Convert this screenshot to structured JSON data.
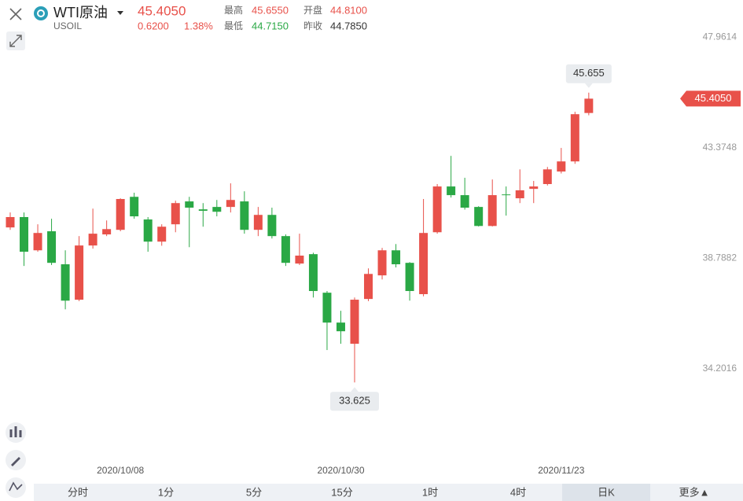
{
  "header": {
    "name": "WTI原油",
    "symbol": "USOIL",
    "price": "45.4050",
    "change": "0.6200",
    "change_pct": "1.38%",
    "high_label": "最高",
    "high": "45.6550",
    "open_label": "开盘",
    "open": "44.8100",
    "low_label": "最低",
    "low": "44.7150",
    "prev_close_label": "昨收",
    "prev_close": "44.7850"
  },
  "chart_data": {
    "type": "candlestick",
    "categories": [
      null,
      null,
      null,
      null,
      null,
      null,
      null,
      null,
      "2020/10/08",
      null,
      null,
      null,
      null,
      null,
      null,
      null,
      null,
      null,
      null,
      null,
      null,
      null,
      null,
      null,
      "2020/10/30",
      null,
      null,
      null,
      null,
      null,
      null,
      null,
      null,
      null,
      null,
      null,
      null,
      null,
      null,
      null,
      "2020/11/23",
      null,
      null
    ],
    "open": [
      40.06,
      40.49,
      39.11,
      39.9,
      38.53,
      37.06,
      39.31,
      39.77,
      39.96,
      41.33,
      40.39,
      39.47,
      40.19,
      41.14,
      40.81,
      40.91,
      40.91,
      41.14,
      39.96,
      40.58,
      39.7,
      38.56,
      38.95,
      37.35,
      36.11,
      35.23,
      37.09,
      38.07,
      39.11,
      38.59,
      37.29,
      39.86,
      41.76,
      41.4,
      40.91,
      40.12,
      41.43,
      41.27,
      41.66,
      41.86,
      42.38,
      42.8,
      44.81
    ],
    "high": [
      40.68,
      40.68,
      40.19,
      40.42,
      39.11,
      39.7,
      40.84,
      40.35,
      41.27,
      41.5,
      40.49,
      40.19,
      41.17,
      41.33,
      41.07,
      41.2,
      41.89,
      41.56,
      40.91,
      40.88,
      39.77,
      39.8,
      39.01,
      37.42,
      36.6,
      37.15,
      38.36,
      39.21,
      39.37,
      38.62,
      41.24,
      41.86,
      43.03,
      42.12,
      40.94,
      42.05,
      41.76,
      42.47,
      41.99,
      42.57,
      43.36,
      44.86,
      45.655
    ],
    "low": [
      39.96,
      38.46,
      39.05,
      38.5,
      36.66,
      37.0,
      39.18,
      39.7,
      39.9,
      40.42,
      39.05,
      39.3,
      39.86,
      39.24,
      40.09,
      40.52,
      40.68,
      39.8,
      39.7,
      39.6,
      38.46,
      38.5,
      37.15,
      34.97,
      35.23,
      33.625,
      37.0,
      37.9,
      38.4,
      37.02,
      37.2,
      39.8,
      41.3,
      40.8,
      40.1,
      40.1,
      40.55,
      41.07,
      41.07,
      41.8,
      42.3,
      42.7,
      44.715
    ],
    "close": [
      40.49,
      39.05,
      39.83,
      38.59,
      37.02,
      39.31,
      39.8,
      39.99,
      41.24,
      40.52,
      39.47,
      40.09,
      41.07,
      40.88,
      40.75,
      40.71,
      41.2,
      39.96,
      40.58,
      39.7,
      38.59,
      38.89,
      37.42,
      36.11,
      35.75,
      37.06,
      38.13,
      39.11,
      38.53,
      37.42,
      39.83,
      41.76,
      41.4,
      40.88,
      40.12,
      41.4,
      41.4,
      41.6,
      41.76,
      42.47,
      42.8,
      44.76,
      45.405
    ],
    "up_color": "#e8514a",
    "down_color": "#2aa845",
    "ylim": [
      29.52,
      49.5
    ],
    "yticks": [
      34.2016,
      38.7882,
      43.3748,
      47.9614
    ],
    "max_label": "45.655",
    "min_label": "33.625"
  },
  "tabs": [
    "分时",
    "1分",
    "5分",
    "15分",
    "1时",
    "4时",
    "日K",
    "更多▲"
  ],
  "active_tab": 6
}
